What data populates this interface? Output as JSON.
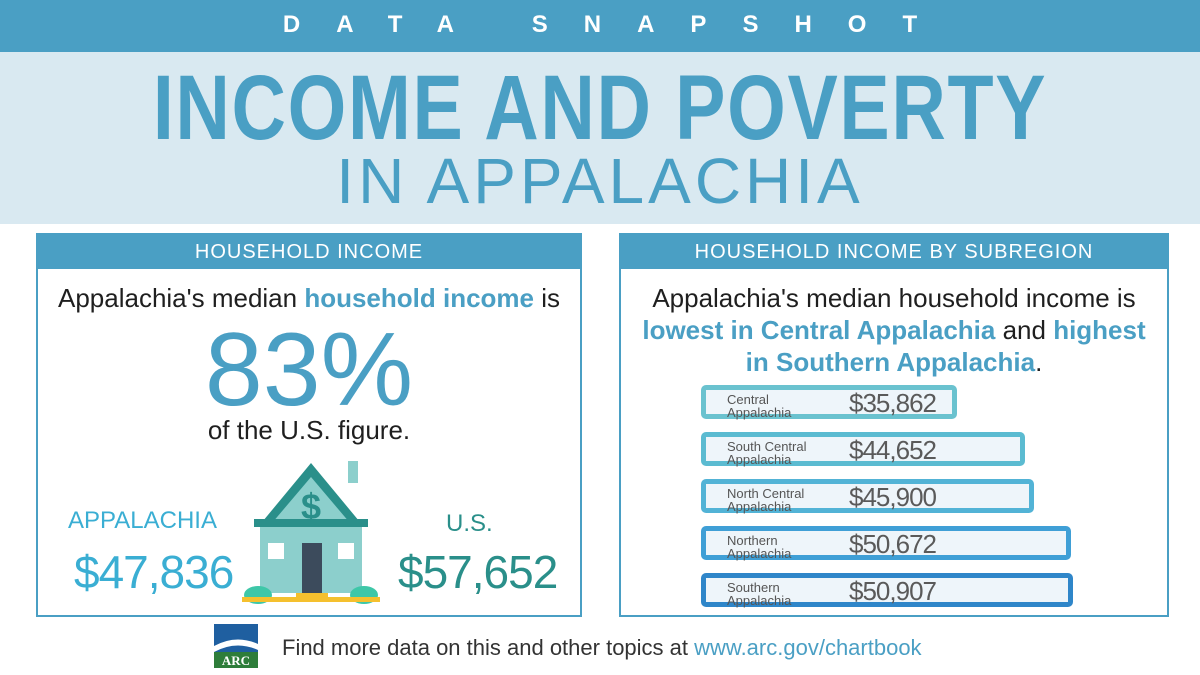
{
  "header": {
    "kicker": "DATA SNAPSHOT",
    "title_line1": "INCOME AND POVERTY",
    "title_line2": "IN APPALACHIA"
  },
  "left_panel": {
    "heading": "HOUSEHOLD INCOME",
    "lead_prefix": "Appalachia's median ",
    "lead_highlight": "household income",
    "lead_suffix": " is",
    "big_percent": "83%",
    "sub_text": "of the U.S. figure.",
    "appalachia_label": "APPALACHIA",
    "appalachia_value": "$47,836",
    "us_label": "U.S.",
    "us_value": "$57,652",
    "house_icon_symbol": "$"
  },
  "right_panel": {
    "heading": "HOUSEHOLD INCOME BY SUBREGION",
    "lead_line1": "Appalachia's median household income is",
    "lead_hl1": "lowest in Central Appalachia",
    "lead_mid": " and ",
    "lead_hl2_a": "highest",
    "lead_hl2_b": "in Southern Appalachia",
    "lead_end": ".",
    "bars": [
      {
        "label_line1": "Central",
        "label_line2": "Appalachia",
        "value_text": "$35,862",
        "value": 35862,
        "color": "#6ac2cf"
      },
      {
        "label_line1": "South Central",
        "label_line2": "Appalachia",
        "value_text": "$44,652",
        "value": 44652,
        "color": "#5bbbd1"
      },
      {
        "label_line1": "North Central",
        "label_line2": "Appalachia",
        "value_text": "$45,900",
        "value": 45900,
        "color": "#52b3d6"
      },
      {
        "label_line1": "Northern",
        "label_line2": "Appalachia",
        "value_text": "$50,672",
        "value": 50672,
        "color": "#3f9fd6"
      },
      {
        "label_line1": "Southern",
        "label_line2": "Appalachia",
        "value_text": "$50,907",
        "value": 50907,
        "color": "#2f86c9"
      }
    ]
  },
  "footer": {
    "logo_text": "ARC",
    "text": "Find more data on this and other topics at ",
    "url": "www.arc.gov/chartbook"
  },
  "colors": {
    "accent": "#4a9fc4",
    "title_band": "#d9e9f1",
    "appalachia_value": "#3aaed3",
    "us_value": "#2a8f8a",
    "house_roof": "#2a8f8a",
    "house_body": "#8ccfcc"
  }
}
